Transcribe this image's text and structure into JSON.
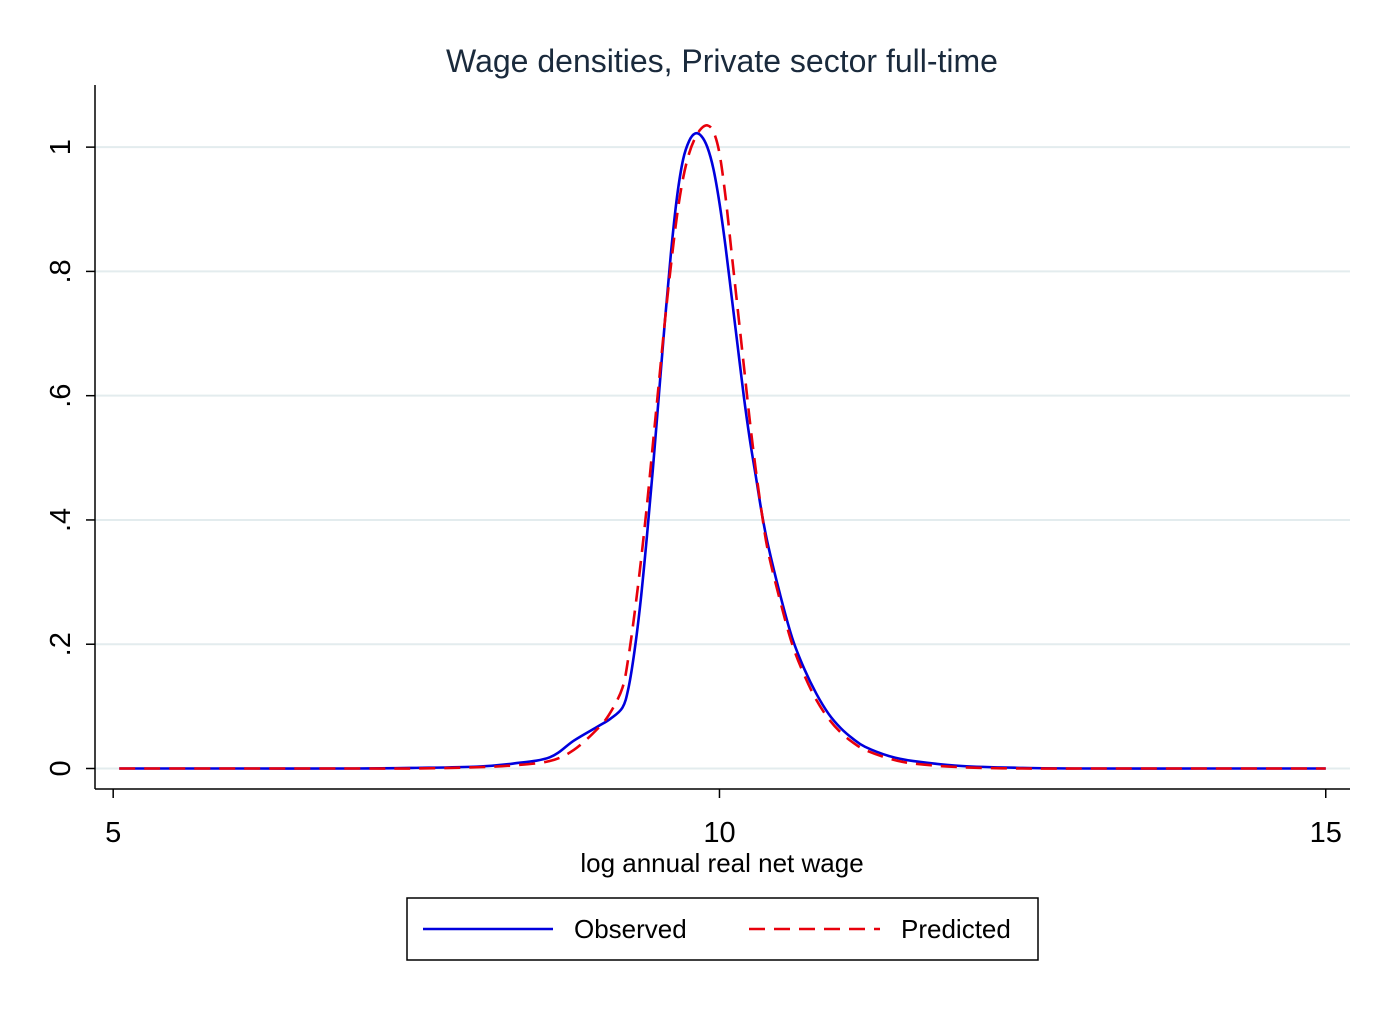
{
  "chart_data": {
    "type": "line",
    "title": "Wage densities, Private sector full-time",
    "xlabel": "log annual real net wage",
    "ylabel": "",
    "xlim": [
      4.85,
      15.2
    ],
    "ylim": [
      -0.033,
      1.1
    ],
    "xticks": [
      5,
      10,
      15
    ],
    "xtick_labels": [
      "5",
      "10",
      "15"
    ],
    "yticks": [
      0,
      0.2,
      0.4,
      0.6,
      0.8,
      1
    ],
    "ytick_labels": [
      "0",
      ".2",
      ".4",
      ".6",
      ".8",
      "1"
    ],
    "grid": "horizontal",
    "legend_position": "bottom",
    "series": [
      {
        "name": "Observed",
        "color": "#0000dd",
        "style": "solid",
        "x": [
          5.05,
          6.0,
          7.0,
          7.5,
          8.0,
          8.3,
          8.6,
          8.8,
          9.0,
          9.1,
          9.2,
          9.25,
          9.3,
          9.35,
          9.4,
          9.45,
          9.5,
          9.55,
          9.6,
          9.65,
          9.7,
          9.75,
          9.8,
          9.85,
          9.9,
          9.95,
          10.0,
          10.05,
          10.1,
          10.15,
          10.2,
          10.25,
          10.3,
          10.35,
          10.4,
          10.5,
          10.6,
          10.7,
          10.8,
          10.9,
          11.0,
          11.1,
          11.2,
          11.4,
          11.6,
          12.0,
          12.5,
          13.0,
          14.0,
          15.0
        ],
        "y": [
          0.0,
          0.0,
          0.0,
          0.001,
          0.003,
          0.008,
          0.018,
          0.045,
          0.068,
          0.08,
          0.098,
          0.13,
          0.19,
          0.27,
          0.37,
          0.48,
          0.6,
          0.72,
          0.83,
          0.92,
          0.98,
          1.01,
          1.022,
          1.018,
          1.0,
          0.965,
          0.91,
          0.84,
          0.76,
          0.68,
          0.6,
          0.53,
          0.47,
          0.41,
          0.36,
          0.28,
          0.21,
          0.16,
          0.12,
          0.088,
          0.065,
          0.048,
          0.035,
          0.02,
          0.012,
          0.004,
          0.001,
          0.0,
          0.0,
          0.0
        ]
      },
      {
        "name": "Predicted",
        "color": "#e8000b",
        "style": "dashed",
        "x": [
          5.05,
          6.0,
          7.0,
          7.5,
          8.0,
          8.3,
          8.6,
          8.8,
          9.0,
          9.1,
          9.2,
          9.25,
          9.3,
          9.35,
          9.4,
          9.45,
          9.5,
          9.55,
          9.6,
          9.65,
          9.7,
          9.75,
          9.8,
          9.85,
          9.9,
          9.95,
          10.0,
          10.05,
          10.1,
          10.15,
          10.2,
          10.25,
          10.3,
          10.35,
          10.4,
          10.5,
          10.6,
          10.7,
          10.8,
          10.9,
          11.0,
          11.1,
          11.2,
          11.4,
          11.6,
          12.0,
          12.5,
          13.0,
          14.0,
          15.0
        ],
        "y": [
          0.0,
          0.0,
          0.0,
          0.0,
          0.002,
          0.005,
          0.012,
          0.03,
          0.065,
          0.09,
          0.13,
          0.18,
          0.25,
          0.33,
          0.42,
          0.52,
          0.62,
          0.72,
          0.81,
          0.89,
          0.95,
          0.99,
          1.015,
          1.03,
          1.035,
          1.025,
          0.99,
          0.92,
          0.83,
          0.74,
          0.65,
          0.56,
          0.48,
          0.41,
          0.35,
          0.27,
          0.2,
          0.15,
          0.11,
          0.08,
          0.058,
          0.042,
          0.03,
          0.016,
          0.008,
          0.002,
          0.0,
          0.0,
          0.0,
          0.0
        ]
      }
    ]
  }
}
